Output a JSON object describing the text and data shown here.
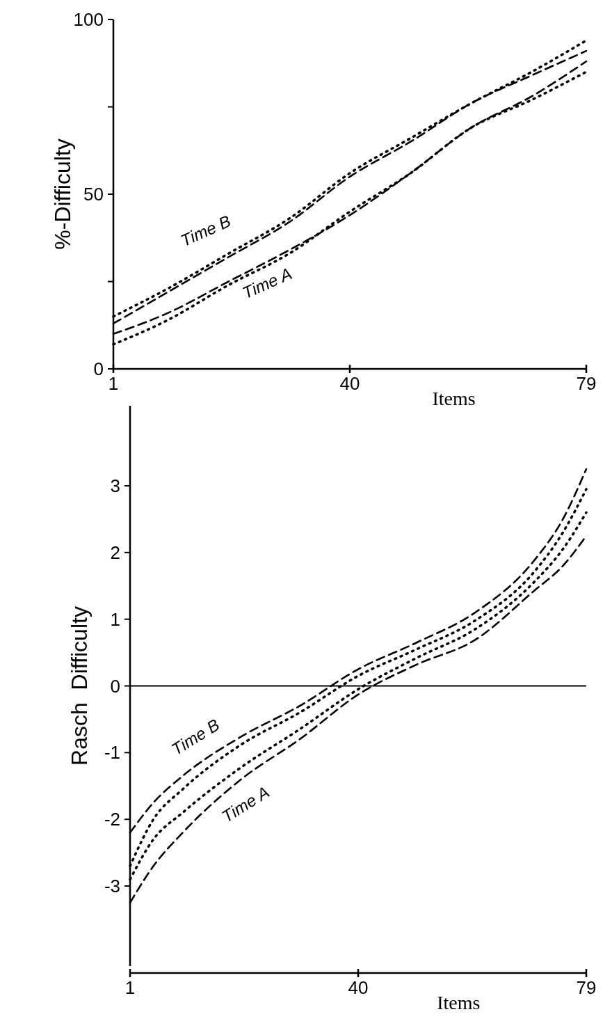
{
  "chart_data": [
    {
      "type": "line",
      "ylabel": "%-Difficulty",
      "xlabel": "Items",
      "xlim": [
        1,
        79
      ],
      "xticks": [
        1,
        40,
        79
      ],
      "ylim": [
        0,
        100
      ],
      "yticks": [
        0,
        {
          "value": 25,
          "label": null
        },
        50,
        {
          "value": 75,
          "label": null
        },
        100
      ],
      "annotations": [
        "Time B",
        "Time A"
      ],
      "series": [
        {
          "color": "#000000",
          "line_style": "dashed",
          "x": [
            1,
            10,
            20,
            30,
            40,
            50,
            60,
            70,
            79
          ],
          "values": [
            13,
            22,
            32,
            42,
            55,
            65,
            76,
            84,
            91
          ]
        },
        {
          "color": "#000000",
          "line_style": "dotted",
          "x": [
            1,
            10,
            20,
            30,
            40,
            50,
            60,
            70,
            79
          ],
          "values": [
            15,
            23,
            33,
            43,
            56,
            66,
            76,
            85,
            94
          ]
        },
        {
          "color": "#000000",
          "line_style": "dashed",
          "x": [
            1,
            10,
            20,
            30,
            40,
            50,
            60,
            70,
            79
          ],
          "values": [
            10,
            16,
            25,
            34,
            44,
            56,
            69,
            78,
            88
          ]
        },
        {
          "color": "#000000",
          "line_style": "dotted",
          "x": [
            1,
            10,
            20,
            30,
            40,
            50,
            60,
            70,
            79
          ],
          "values": [
            7,
            14,
            24,
            33,
            45,
            56,
            69,
            77,
            85
          ]
        }
      ]
    },
    {
      "type": "line",
      "ylabel": "Rasch  Difficulty",
      "xlabel": "Items",
      "xlim": [
        1,
        79
      ],
      "xticks": [
        1,
        40,
        79
      ],
      "ylim": [
        -4.2,
        4.2
      ],
      "yticks": [
        -3,
        -2,
        -1,
        0,
        1,
        2,
        3
      ],
      "ref_lines": [
        {
          "axis": "y",
          "value": 0,
          "color": "#000000",
          "line_style": "solid"
        }
      ],
      "annotations": [
        "Time B",
        "Time A"
      ],
      "series": [
        {
          "color": "#000000",
          "line_style": "dashed",
          "x": [
            1,
            5,
            10,
            20,
            30,
            40,
            50,
            60,
            70,
            75,
            79
          ],
          "values": [
            -2.2,
            -1.75,
            -1.35,
            -0.76,
            -0.3,
            0.25,
            0.65,
            1.1,
            1.87,
            2.5,
            3.25
          ]
        },
        {
          "color": "#000000",
          "line_style": "dotted",
          "x": [
            1,
            5,
            10,
            20,
            30,
            40,
            50,
            60,
            70,
            75,
            79
          ],
          "values": [
            -2.7,
            -2.0,
            -1.55,
            -0.88,
            -0.4,
            0.15,
            0.55,
            0.98,
            1.7,
            2.3,
            2.95
          ]
        },
        {
          "color": "#000000",
          "line_style": "dotted",
          "x": [
            1,
            5,
            10,
            20,
            30,
            40,
            50,
            60,
            70,
            75,
            79
          ],
          "values": [
            -2.9,
            -2.3,
            -1.9,
            -1.22,
            -0.65,
            -0.05,
            0.42,
            0.85,
            1.55,
            2.05,
            2.6
          ]
        },
        {
          "color": "#000000",
          "line_style": "dashed",
          "x": [
            1,
            5,
            10,
            20,
            30,
            40,
            50,
            60,
            70,
            75,
            79
          ],
          "values": [
            -3.25,
            -2.7,
            -2.2,
            -1.4,
            -0.8,
            -0.13,
            0.32,
            0.69,
            1.42,
            1.8,
            2.25
          ]
        }
      ]
    }
  ]
}
